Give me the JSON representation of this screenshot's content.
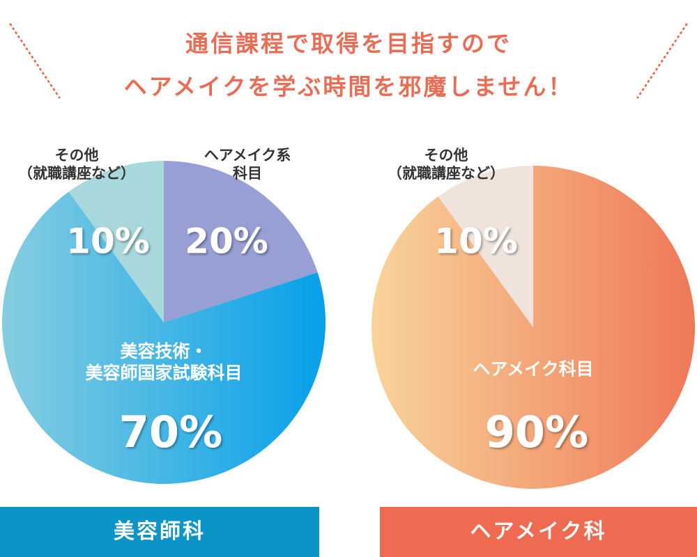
{
  "title": [
    "通信課程で取得を目指すので",
    "ヘアメイクを学ぶ時間を邪魔しません！"
  ],
  "chart_data": [
    {
      "type": "pie",
      "label": "美容師科",
      "categories": [
        "ヘアメイク系\n科目",
        "美容技術・\n美容師国家試験科目",
        "その他\n（就職講座など）"
      ],
      "values": [
        20,
        70,
        10
      ],
      "value_labels": [
        "20%",
        "70%",
        "10%"
      ],
      "colors": [
        "#979fd5",
        "#1aa4e4",
        "#a9d8dc"
      ],
      "label_color": "#0a95c6"
    },
    {
      "type": "pie",
      "label": "ヘアメイク科",
      "categories": [
        "ヘアメイク科目",
        "その他\n（就職講座など）"
      ],
      "values": [
        90,
        10
      ],
      "value_labels": [
        "90%",
        "10%"
      ],
      "colors": [
        "#f08a64",
        "#efe3dc"
      ],
      "label_color": "#ee6a50"
    }
  ]
}
